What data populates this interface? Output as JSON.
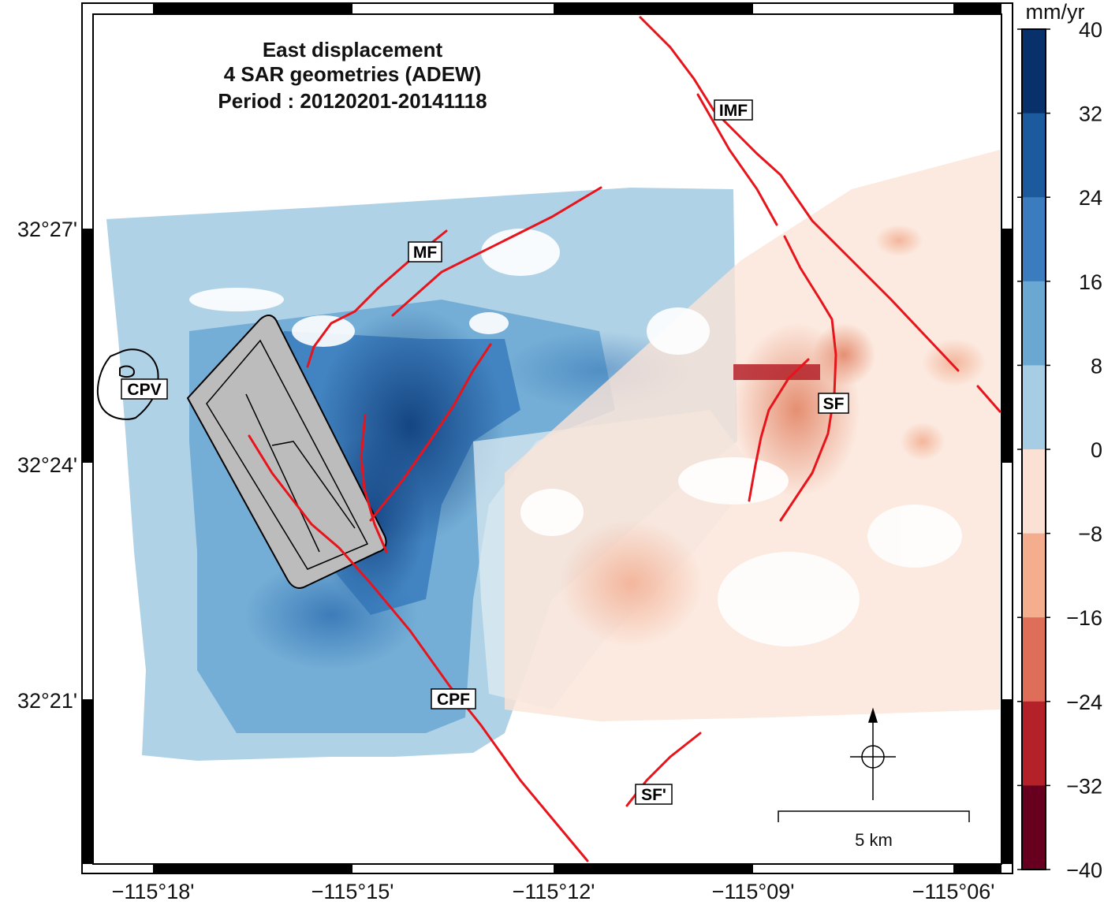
{
  "map": {
    "title_lines": [
      "East displacement",
      "4 SAR geometries (ADEW)",
      "Period : 20120201-20141118"
    ],
    "x_ticks": [
      "−115°18'",
      "−115°15'",
      "−115°12'",
      "−115°09'",
      "−115°06'"
    ],
    "y_ticks": [
      "32°27'",
      "32°24'",
      "32°21'"
    ],
    "fault_labels": [
      "IMF",
      "MF",
      "CPV",
      "SF",
      "CPF",
      "SF'"
    ],
    "scale_bar_label": "5 km",
    "north_arrow_icon": "north-arrow-crosshair-icon"
  },
  "colorbar": {
    "unit": "mm/yr",
    "ticks": [
      "40",
      "32",
      "24",
      "16",
      "8",
      "0",
      "−8",
      "−16",
      "−24",
      "−32",
      "−40"
    ],
    "colors": [
      "#08306b",
      "#1c5a9e",
      "#3a7cbd",
      "#6aa8d2",
      "#a6cde3",
      "#dbe9f0",
      "#fbe1d4",
      "#f4ad8d",
      "#de6e58",
      "#b42129",
      "#67001f"
    ]
  },
  "style": {
    "fault_color": "#e8141c",
    "volcano_fill": "#bcbcbc"
  }
}
